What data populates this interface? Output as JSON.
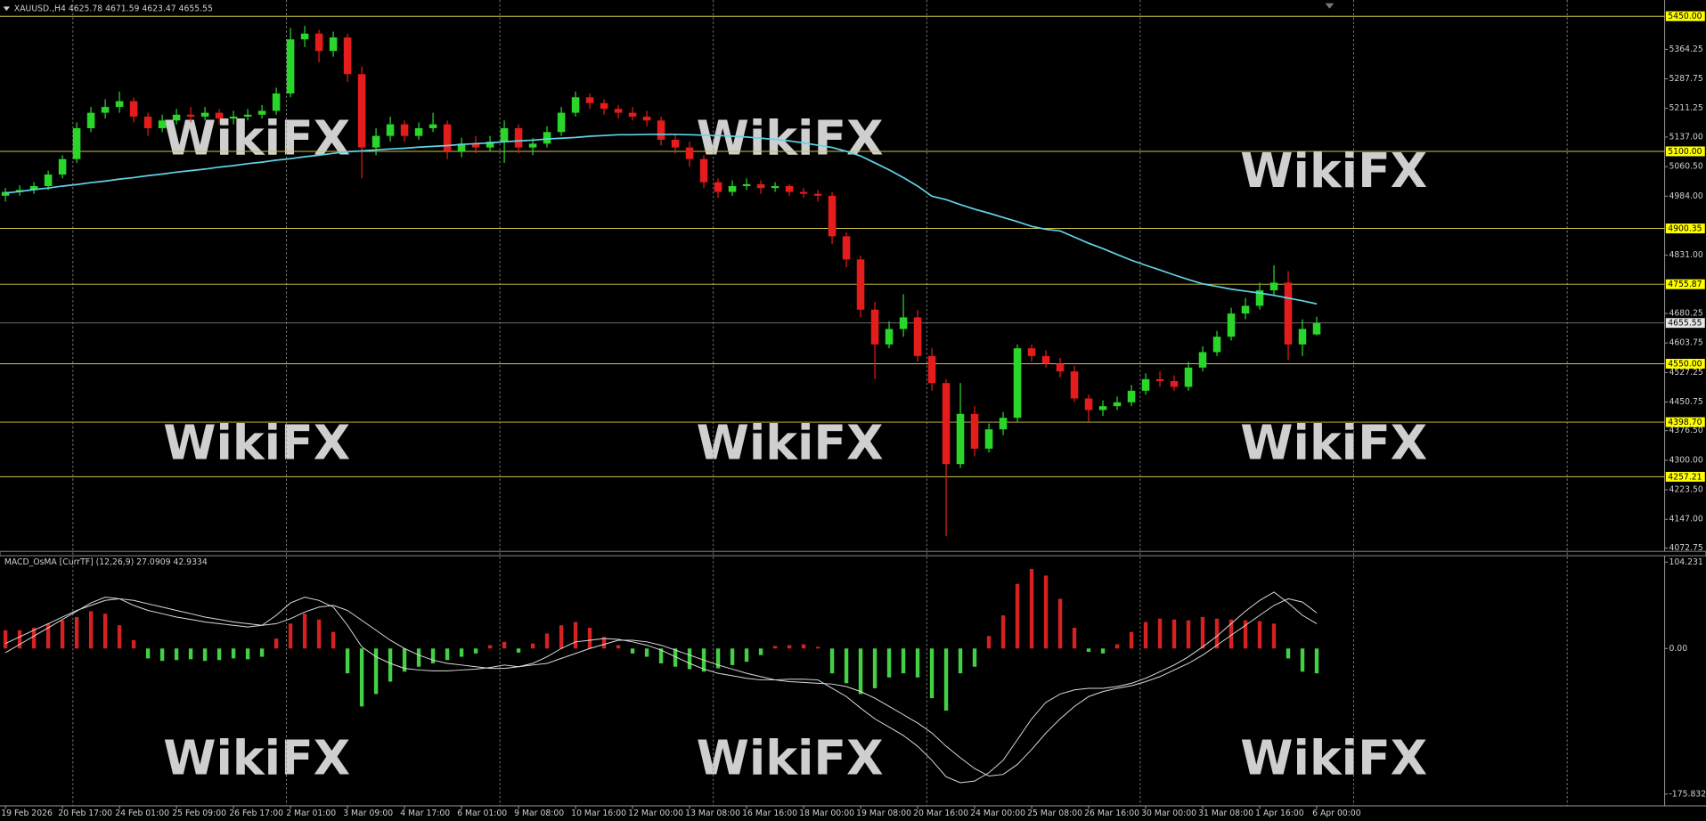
{
  "watermark": "WikiFX",
  "chart_data": [
    {
      "type": "candlestick",
      "title": "XAUUSD.,H4 4625.78 4671.59 4623.47 4655.55",
      "categories": [
        "19 Feb 2026",
        null,
        null,
        null,
        "20 Feb 17:00",
        null,
        null,
        null,
        "24 Feb 01:00",
        null,
        null,
        null,
        "25 Feb 09:00",
        null,
        null,
        null,
        "26 Feb 17:00",
        null,
        null,
        null,
        "2 Mar 01:00",
        null,
        null,
        null,
        "3 Mar 09:00",
        null,
        null,
        null,
        "4 Mar 17:00",
        null,
        null,
        null,
        "6 Mar 01:00",
        null,
        null,
        null,
        "9 Mar 08:00",
        null,
        null,
        null,
        "10 Mar 16:00",
        null,
        null,
        null,
        "12 Mar 00:00",
        null,
        null,
        null,
        "13 Mar 08:00",
        null,
        null,
        null,
        "16 Mar 16:00",
        null,
        null,
        null,
        "18 Mar 00:00",
        null,
        null,
        null,
        "19 Mar 08:00",
        null,
        null,
        null,
        "20 Mar 16:00",
        null,
        null,
        null,
        "24 Mar 00:00",
        null,
        null,
        null,
        "25 Mar 08:00",
        null,
        null,
        null,
        "26 Mar 16:00",
        null,
        null,
        null,
        "30 Mar 00:00",
        null,
        null,
        null,
        "31 Mar 08:00",
        null,
        null,
        null,
        "1 Apr 16:00",
        null,
        null,
        null,
        "6 Apr 00:00"
      ],
      "open": [
        4985,
        4995,
        5000,
        5010,
        5040,
        5080,
        5160,
        5200,
        5215,
        5230,
        5190,
        5160,
        5180,
        5195,
        5190,
        5200,
        5185,
        5190,
        5195,
        5205,
        5250,
        5390,
        5405,
        5360,
        5395,
        5300,
        5110,
        5140,
        5170,
        5140,
        5160,
        5170,
        5100,
        5120,
        5110,
        5125,
        5160,
        5110,
        5120,
        5150,
        5200,
        5240,
        5225,
        5210,
        5200,
        5190,
        5180,
        5130,
        5110,
        5080,
        5020,
        4995,
        5010,
        5015,
        5005,
        5010,
        4995,
        4990,
        4985,
        4880,
        4820,
        4690,
        4600,
        4640,
        4670,
        4570,
        4500,
        4290,
        4420,
        4330,
        4380,
        4410,
        4590,
        4570,
        4550,
        4530,
        4460,
        4430,
        4440,
        4450,
        4480,
        4510,
        4505,
        4490,
        4540,
        4580,
        4620,
        4680,
        4700,
        4740,
        4760,
        4600,
        4625.78
      ],
      "high": [
        5005,
        5012,
        5020,
        5050,
        5090,
        5175,
        5215,
        5235,
        5255,
        5240,
        5200,
        5195,
        5210,
        5215,
        5215,
        5210,
        5205,
        5210,
        5220,
        5265,
        5420,
        5425,
        5415,
        5410,
        5405,
        5320,
        5160,
        5190,
        5180,
        5175,
        5200,
        5180,
        5135,
        5140,
        5140,
        5180,
        5170,
        5135,
        5165,
        5215,
        5255,
        5250,
        5235,
        5220,
        5215,
        5205,
        5190,
        5145,
        5125,
        5090,
        5030,
        5025,
        5030,
        5025,
        5020,
        5015,
        5005,
        5000,
        4995,
        4890,
        4830,
        4710,
        4660,
        4730,
        4690,
        4590,
        4510,
        4500,
        4440,
        4395,
        4425,
        4600,
        4600,
        4585,
        4565,
        4545,
        4470,
        4455,
        4465,
        4495,
        4525,
        4530,
        4520,
        4555,
        4595,
        4635,
        4695,
        4720,
        4760,
        4805,
        4790,
        4665,
        4671.59
      ],
      "low": [
        4970,
        4985,
        4990,
        5000,
        5030,
        5070,
        5150,
        5185,
        5200,
        5175,
        5140,
        5150,
        5170,
        5175,
        5180,
        5170,
        5170,
        5180,
        5185,
        5195,
        5240,
        5370,
        5330,
        5345,
        5280,
        5030,
        5090,
        5125,
        5125,
        5130,
        5150,
        5080,
        5085,
        5095,
        5100,
        5070,
        5095,
        5090,
        5110,
        5140,
        5190,
        5210,
        5195,
        5185,
        5180,
        5165,
        5115,
        5095,
        5060,
        5005,
        4980,
        4985,
        5000,
        4990,
        4995,
        4985,
        4980,
        4970,
        4860,
        4800,
        4670,
        4510,
        4590,
        4620,
        4555,
        4480,
        4104,
        4280,
        4310,
        4320,
        4365,
        4400,
        4555,
        4540,
        4515,
        4450,
        4400,
        4415,
        4430,
        4440,
        4470,
        4490,
        4480,
        4480,
        4530,
        4570,
        4610,
        4665,
        4690,
        4725,
        4560,
        4570,
        4623.47
      ],
      "close": [
        4995,
        5000,
        5010,
        5040,
        5080,
        5160,
        5200,
        5215,
        5230,
        5190,
        5160,
        5180,
        5195,
        5190,
        5200,
        5185,
        5190,
        5195,
        5205,
        5250,
        5390,
        5405,
        5360,
        5395,
        5300,
        5110,
        5140,
        5170,
        5140,
        5160,
        5170,
        5100,
        5120,
        5110,
        5125,
        5160,
        5110,
        5120,
        5150,
        5200,
        5240,
        5225,
        5210,
        5200,
        5190,
        5180,
        5130,
        5110,
        5080,
        5020,
        4995,
        5010,
        5015,
        5005,
        5010,
        4995,
        4990,
        4985,
        4880,
        4820,
        4690,
        4600,
        4640,
        4670,
        4570,
        4500,
        4290,
        4420,
        4330,
        4380,
        4410,
        4590,
        4570,
        4550,
        4530,
        4460,
        4430,
        4440,
        4450,
        4480,
        4510,
        4505,
        4490,
        4540,
        4580,
        4620,
        4680,
        4700,
        4740,
        4760,
        4600,
        4640,
        4655.55
      ],
      "up_color": "#2bd62b",
      "down_color": "#e41c1c",
      "ma": {
        "color": "#62d4e6",
        "values": [
          4992,
          4996,
          5001,
          5005,
          5010,
          5014,
          5019,
          5023,
          5028,
          5032,
          5037,
          5041,
          5046,
          5050,
          5054,
          5059,
          5063,
          5068,
          5072,
          5077,
          5081,
          5086,
          5090,
          5095,
          5099,
          5101,
          5104,
          5106,
          5108,
          5111,
          5113,
          5115,
          5118,
          5120,
          5122,
          5125,
          5127,
          5129,
          5132,
          5134,
          5136,
          5139,
          5141,
          5143,
          5143,
          5144,
          5144,
          5144,
          5143,
          5142,
          5141,
          5139,
          5137,
          5134,
          5131,
          5127,
          5122,
          5116,
          5110,
          5100,
          5088,
          5070,
          5052,
          5032,
          5010,
          4984,
          4975,
          4962,
          4950,
          4940,
          4929,
          4918,
          4906,
          4898,
          4894,
          4878,
          4862,
          4848,
          4833,
          4818,
          4805,
          4793,
          4780,
          4768,
          4757,
          4750,
          4743,
          4738,
          4733,
          4727,
          4720,
          4713,
          4705
        ]
      },
      "ylim": [
        4064,
        5492
      ],
      "yticks": [
        5364.25,
        5287.75,
        5211.25,
        {
          "value": 5137,
          "label": "5137.00"
        },
        {
          "value": 5060.5,
          "label": "5060.50"
        },
        {
          "value": 4984,
          "label": "4984.00"
        },
        {
          "value": 4831,
          "label": "4831.00"
        },
        4680.25,
        4603.75,
        4527.25,
        4450.75,
        {
          "value": 4376.5,
          "label": "4376.50"
        },
        {
          "value": 4300,
          "label": "4300.00"
        },
        {
          "value": 4223.5,
          "label": "4223.50"
        },
        {
          "value": 4147,
          "label": "4147.00"
        },
        4072.75
      ],
      "levels": [
        {
          "value": 5450,
          "label": "5450.00"
        },
        {
          "value": 5100,
          "label": "5100.00"
        },
        4900.35,
        4755.87,
        {
          "value": 4550,
          "label": "4550.00"
        },
        {
          "value": 4398.7,
          "label": "4398.70"
        },
        4257.21
      ],
      "level_color": "#cfc64a",
      "current_price": 4655.55,
      "grid": true
    },
    {
      "type": "osma",
      "title": "MACD_OsMA [CurrTF] (12,26,9) 27.0909 42.9334",
      "values": [
        22,
        22,
        25,
        30,
        34,
        38,
        45,
        42,
        28,
        10,
        -12,
        -15,
        -14,
        -13,
        -15,
        -14,
        -12,
        -13,
        -10,
        12,
        30,
        42,
        35,
        20,
        -30,
        -70,
        -55,
        -40,
        -28,
        -22,
        -18,
        -14,
        -10,
        -6,
        4,
        8,
        -5,
        6,
        18,
        28,
        32,
        25,
        14,
        4,
        -6,
        -10,
        -18,
        -22,
        -25,
        -28,
        -24,
        -20,
        -16,
        -8,
        3,
        4,
        5,
        2,
        -30,
        -42,
        -55,
        -48,
        -35,
        -30,
        -35,
        -60,
        -75,
        -30,
        -22,
        15,
        40,
        78,
        96,
        88,
        60,
        25,
        -4,
        -6,
        5,
        20,
        32,
        36,
        35,
        34,
        38,
        36,
        35,
        34,
        33,
        30,
        -12,
        -28,
        -30
      ],
      "pos_color": "#d42222",
      "neg_color": "#44d044",
      "lines": [
        {
          "color": "#dcdcdc",
          "values": [
            -5,
            5,
            15,
            25,
            35,
            45,
            55,
            62,
            60,
            52,
            46,
            42,
            38,
            35,
            32,
            30,
            28,
            26,
            28,
            40,
            55,
            62,
            58,
            50,
            28,
            2,
            -10,
            -18,
            -24,
            -26,
            -27,
            -27,
            -26,
            -25,
            -23,
            -20,
            -22,
            -18,
            -10,
            0,
            8,
            10,
            12,
            11,
            8,
            4,
            -2,
            -10,
            -18,
            -25,
            -30,
            -33,
            -36,
            -38,
            -38,
            -37,
            -37,
            -38,
            -48,
            -58,
            -72,
            -85,
            -95,
            -105,
            -118,
            -135,
            -155,
            -162,
            -160,
            -150,
            -135,
            -110,
            -85,
            -65,
            -55,
            -50,
            -48,
            -48,
            -46,
            -42,
            -36,
            -28,
            -20,
            -10,
            2,
            15,
            30,
            45,
            58,
            68,
            55,
            40,
            30
          ]
        },
        {
          "color": "#dcdcdc",
          "values": [
            6,
            14,
            22,
            30,
            38,
            46,
            52,
            58,
            60,
            58,
            54,
            50,
            46,
            42,
            38,
            35,
            32,
            30,
            28,
            30,
            36,
            44,
            50,
            52,
            46,
            34,
            22,
            10,
            0,
            -8,
            -14,
            -18,
            -20,
            -22,
            -24,
            -24,
            -22,
            -20,
            -18,
            -12,
            -6,
            0,
            5,
            10,
            10,
            8,
            4,
            -2,
            -8,
            -14,
            -20,
            -25,
            -30,
            -34,
            -38,
            -40,
            -41,
            -42,
            -43,
            -46,
            -52,
            -60,
            -70,
            -80,
            -90,
            -102,
            -118,
            -132,
            -145,
            -154,
            -152,
            -140,
            -122,
            -102,
            -85,
            -70,
            -58,
            -52,
            -48,
            -45,
            -40,
            -34,
            -26,
            -18,
            -8,
            4,
            16,
            28,
            40,
            52,
            60,
            56,
            43
          ]
        }
      ],
      "ylim": [
        -190,
        112
      ],
      "yticks": [
        104.231,
        {
          "value": 0,
          "label": "0.00"
        },
        -175.832
      ]
    }
  ]
}
